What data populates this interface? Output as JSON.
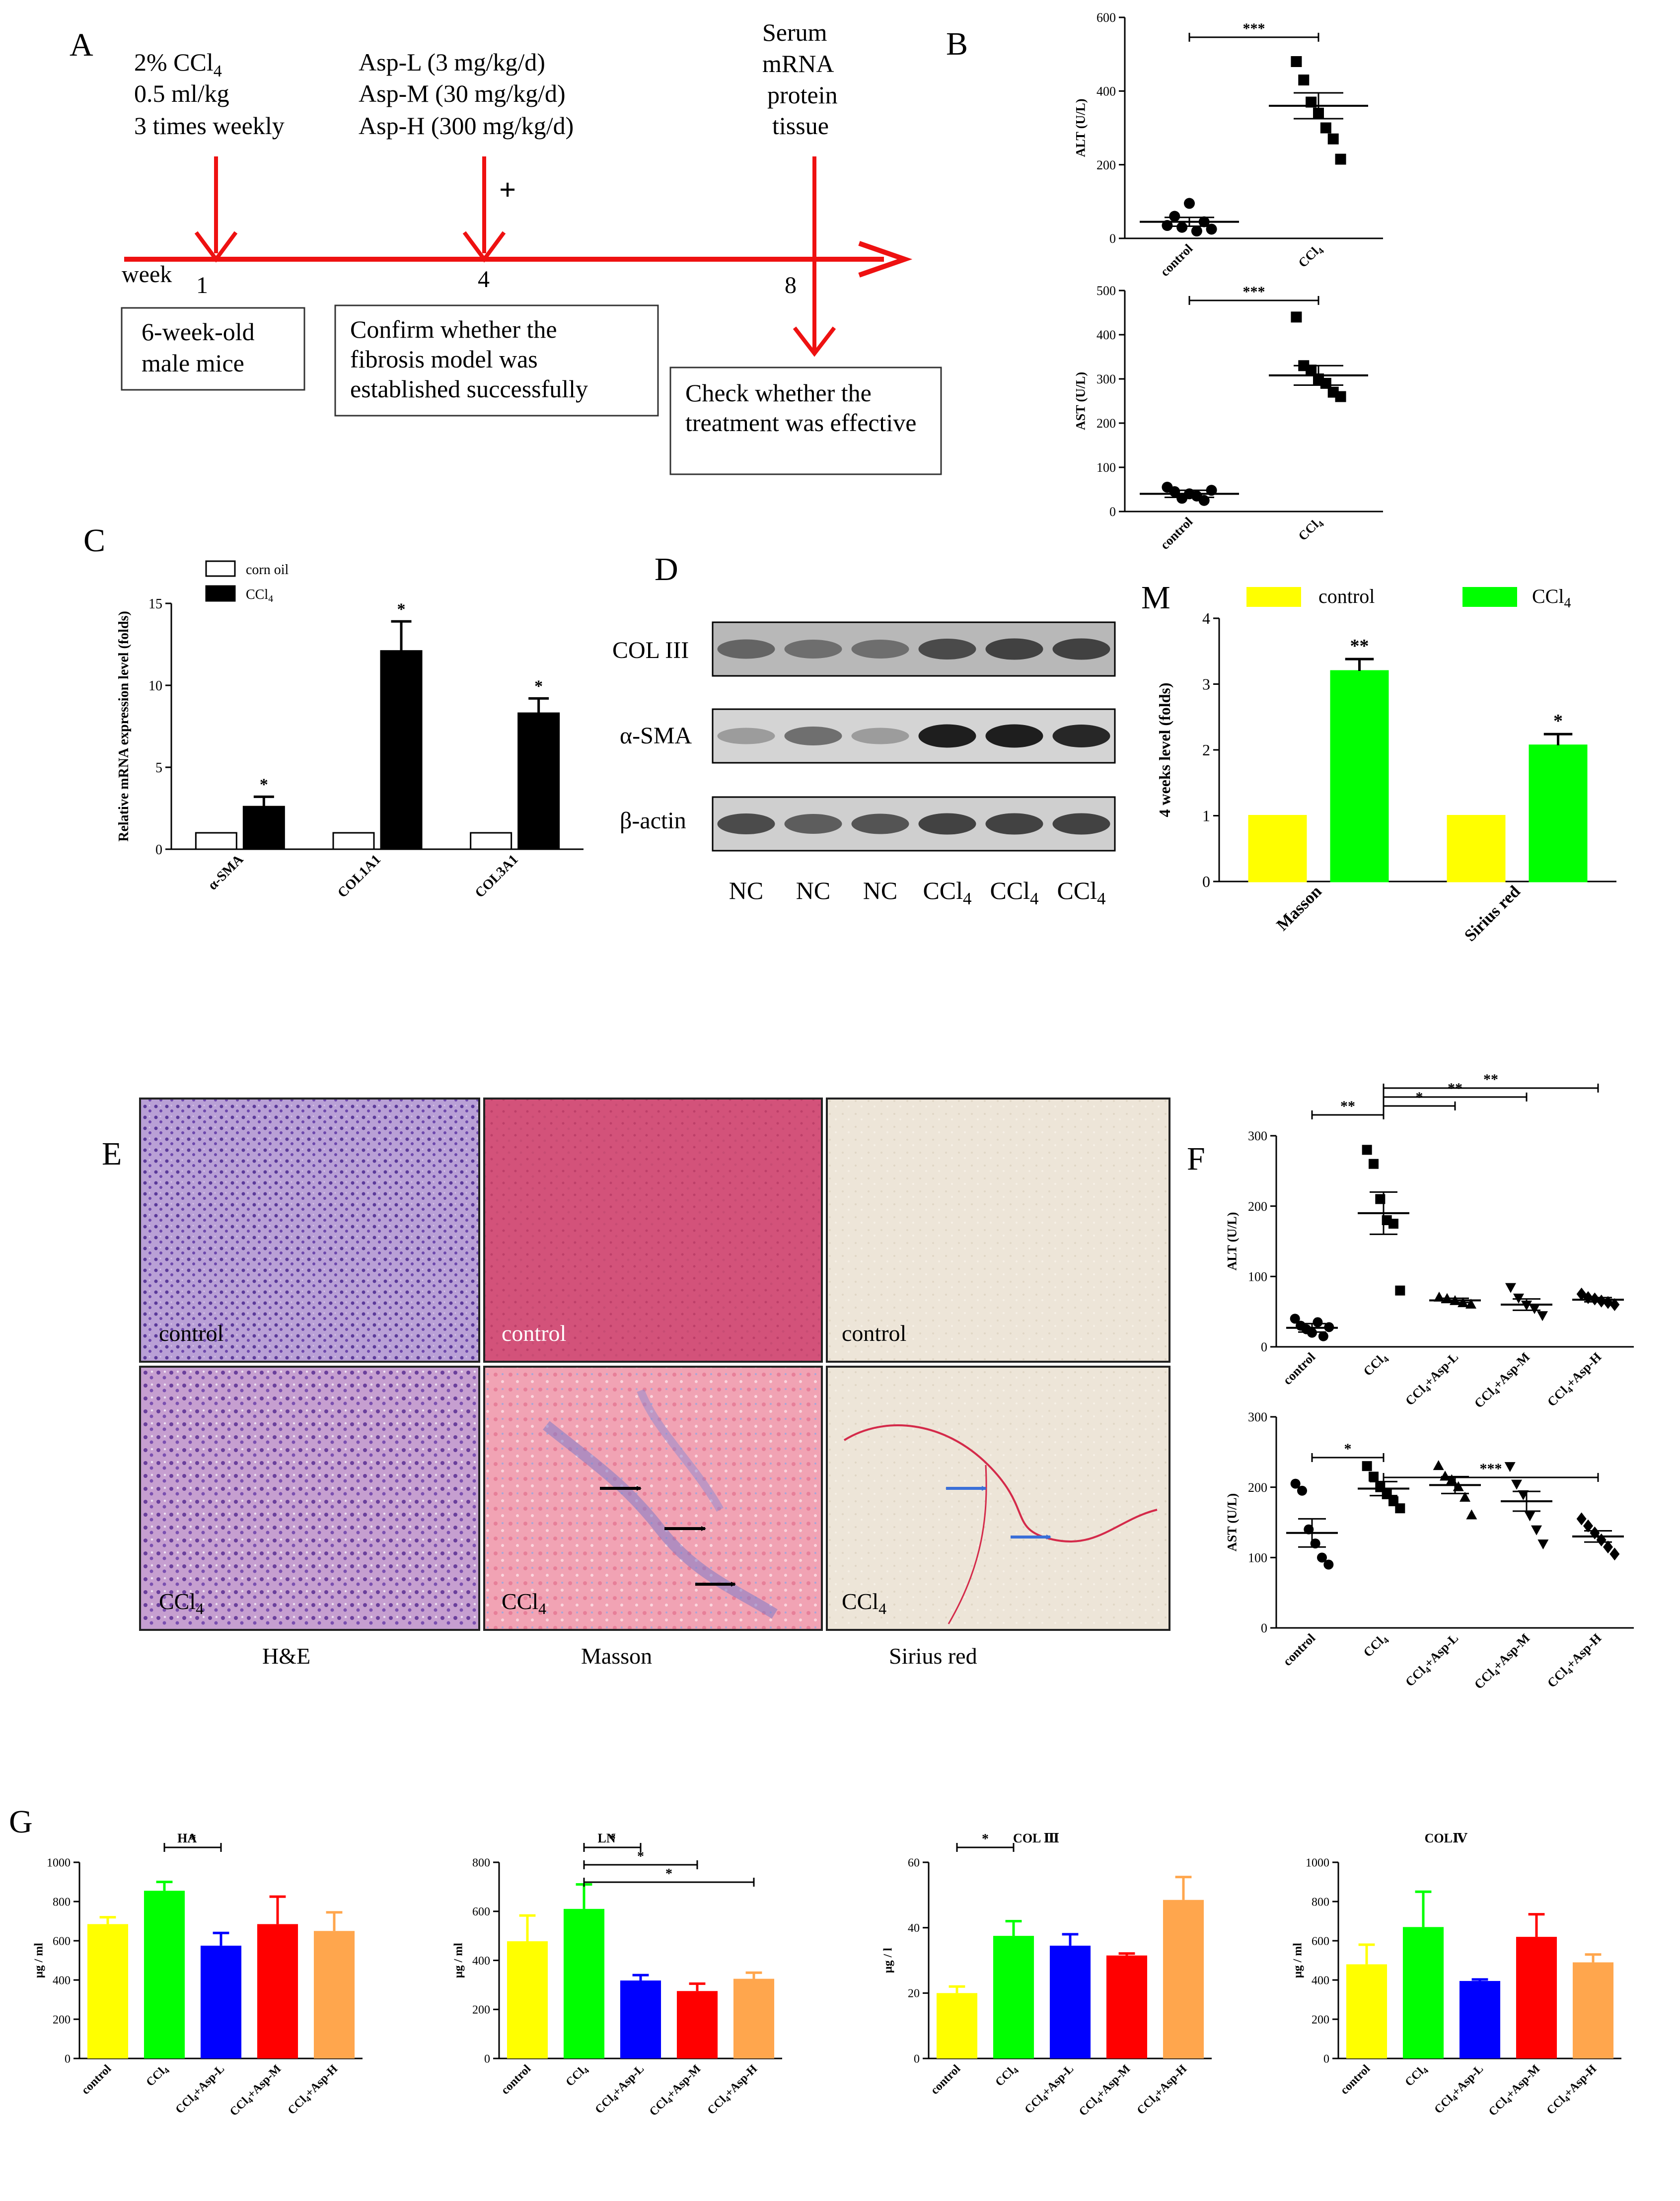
{
  "panel_letters": [
    "A",
    "B",
    "C",
    "D",
    "M",
    "E",
    "F",
    "G"
  ],
  "panelA": {
    "ccl4_lines": [
      "2% CCl",
      "0.5 ml/kg",
      "3 times weekly"
    ],
    "asp_lines": [
      "Asp-L (3 mg/kg/d)",
      "Asp-M (30 mg/kg/d)",
      "Asp-H (300 mg/kg/d)"
    ],
    "serum_lines": [
      "Serum",
      "mRNA",
      "protein",
      "tissue"
    ],
    "plus": "+",
    "week_label": "week",
    "week_nums": [
      "1",
      "4",
      "8"
    ],
    "box1": [
      "6-week-old",
      "male mice"
    ],
    "box2": [
      "Confirm whether the",
      "fibrosis model was",
      "established successfully"
    ],
    "box3": [
      "Check whether the",
      "treatment was effective"
    ]
  },
  "panelE": {
    "row1_labels": [
      "control",
      "control",
      "control"
    ],
    "row2_labels": [
      "CCl4",
      "CCl4",
      "CCl4"
    ],
    "col_labels": [
      "H&E",
      "Masson",
      "Sirius red"
    ]
  },
  "panelD": {
    "rows": [
      "COL III",
      "α-SMA",
      "β-actin"
    ],
    "lanes": [
      "NC",
      "NC",
      "NC",
      "CCl4",
      "CCl4",
      "CCl4"
    ],
    "colIII": [
      0.55,
      0.5,
      0.5,
      0.7,
      0.75,
      0.75
    ],
    "aSMA": [
      0.25,
      0.5,
      0.25,
      0.95,
      0.95,
      0.9
    ],
    "bactin": [
      0.7,
      0.6,
      0.65,
      0.75,
      0.75,
      0.75
    ]
  },
  "colors": {
    "red": "#ee1111",
    "yellow": "#ffff00",
    "green": "#00ff00",
    "blue": "#0000ff",
    "red_bar": "#ff0000",
    "orange": "#ffa64d",
    "black": "#000000"
  },
  "chart_data": [
    {
      "id": "B-ALT",
      "type": "scatter",
      "ylabel": "ALT (U/L)",
      "ylim": [
        0,
        600
      ],
      "yticks": [
        0,
        200,
        400,
        600
      ],
      "categories": [
        "control",
        "CCl4"
      ],
      "points": [
        [
          35,
          60,
          30,
          95,
          20,
          45,
          25
        ],
        [
          480,
          430,
          370,
          340,
          300,
          270,
          215
        ]
      ],
      "means": [
        45,
        360
      ],
      "sems": [
        12,
        35
      ],
      "sig": [
        {
          "from": 0,
          "to": 1,
          "label": "***"
        }
      ]
    },
    {
      "id": "B-AST",
      "type": "scatter",
      "ylabel": "AST (U/L)",
      "ylim": [
        0,
        500
      ],
      "yticks": [
        0,
        100,
        200,
        300,
        400,
        500
      ],
      "categories": [
        "control",
        "CCl4"
      ],
      "points": [
        [
          55,
          45,
          30,
          40,
          35,
          25,
          48
        ],
        [
          440,
          330,
          320,
          300,
          290,
          270,
          260
        ]
      ],
      "means": [
        40,
        308
      ],
      "sems": [
        8,
        22
      ],
      "sig": [
        {
          "from": 0,
          "to": 1,
          "label": "***"
        }
      ]
    },
    {
      "id": "C",
      "type": "bar",
      "ylabel": "Relative mRNA expression level (folds)",
      "ylim": [
        0,
        15
      ],
      "yticks": [
        0,
        5,
        10,
        15
      ],
      "categories": [
        "α-SMA",
        "COL1A1",
        "COL3A1"
      ],
      "series": [
        {
          "name": "corn oil",
          "values": [
            1,
            1,
            1
          ],
          "errors": [
            0,
            0,
            0
          ]
        },
        {
          "name": "CCl4",
          "values": [
            2.6,
            12.1,
            8.3
          ],
          "errors": [
            0.6,
            1.8,
            0.9
          ]
        }
      ],
      "stars": [
        "*",
        "*",
        "*"
      ]
    },
    {
      "id": "M",
      "type": "bar",
      "ylabel": "4 weeks level (folds)",
      "ylim": [
        0,
        4
      ],
      "yticks": [
        0,
        1,
        2,
        3,
        4
      ],
      "categories": [
        "Masson",
        "Sirius red"
      ],
      "series": [
        {
          "name": "control",
          "values": [
            1,
            1
          ],
          "errors": [
            0,
            0
          ]
        },
        {
          "name": "CCl4",
          "values": [
            3.2,
            2.07
          ],
          "errors": [
            0.18,
            0.17
          ]
        }
      ],
      "stars": [
        "**",
        "*"
      ]
    },
    {
      "id": "F-ALT",
      "type": "scatter",
      "ylabel": "ALT (U/L)",
      "ylim": [
        0,
        300
      ],
      "yticks": [
        0,
        100,
        200,
        300
      ],
      "categories": [
        "control",
        "CCl4",
        "CCl4+Asp-L",
        "CCl4+Asp-M",
        "CCl4+Asp-H"
      ],
      "points": [
        [
          40,
          30,
          25,
          20,
          35,
          15,
          28
        ],
        [
          280,
          260,
          210,
          180,
          175,
          80
        ],
        [
          70,
          68,
          65,
          62,
          60
        ],
        [
          85,
          70,
          60,
          55,
          45
        ],
        [
          75,
          70,
          68,
          65,
          63,
          60
        ]
      ],
      "means": [
        27,
        190,
        66,
        60,
        67
      ],
      "sems": [
        6,
        30,
        3,
        8,
        3
      ],
      "sig": [
        {
          "from": 0,
          "to": 1,
          "label": "**"
        },
        {
          "from": 1,
          "to": 2,
          "label": "*"
        },
        {
          "from": 1,
          "to": 3,
          "label": "**"
        },
        {
          "from": 1,
          "to": 4,
          "label": "**"
        }
      ]
    },
    {
      "id": "F-AST",
      "type": "scatter",
      "ylabel": "AST (U/L)",
      "ylim": [
        0,
        300
      ],
      "yticks": [
        0,
        100,
        200,
        300
      ],
      "categories": [
        "control",
        "CCl4",
        "CCl4+Asp-L",
        "CCl4+Asp-M",
        "CCl4+Asp-H"
      ],
      "points": [
        [
          205,
          195,
          140,
          120,
          100,
          90
        ],
        [
          230,
          215,
          200,
          190,
          180,
          170
        ],
        [
          230,
          215,
          210,
          200,
          185,
          160
        ],
        [
          230,
          205,
          190,
          160,
          140,
          120
        ],
        [
          155,
          145,
          135,
          125,
          115,
          105
        ]
      ],
      "means": [
        135,
        198,
        203,
        180,
        130
      ],
      "sems": [
        20,
        10,
        12,
        14,
        8
      ],
      "sig": [
        {
          "from": 0,
          "to": 1,
          "label": "*"
        },
        {
          "from": 1,
          "to": 4,
          "label": "***"
        }
      ]
    },
    {
      "id": "G-HA",
      "type": "bar",
      "title": "HA",
      "ylabel": "μg / ml",
      "ylim": [
        0,
        1000
      ],
      "yticks": [
        0,
        200,
        400,
        600,
        800,
        1000
      ],
      "categories": [
        "control",
        "CCl4",
        "CCl4+Asp-L",
        "CCl4+Asp-M",
        "CCl4+Asp-H"
      ],
      "values": [
        685,
        855,
        575,
        685,
        650
      ],
      "errors": [
        35,
        45,
        65,
        140,
        95
      ],
      "sig": [
        {
          "from": 1,
          "to": 2,
          "label": "*"
        }
      ]
    },
    {
      "id": "G-LN",
      "type": "bar",
      "title": "LN",
      "ylabel": "μg / ml",
      "ylim": [
        0,
        800
      ],
      "yticks": [
        0,
        200,
        400,
        600,
        800
      ],
      "categories": [
        "control",
        "CCl4",
        "CCl4+Asp-L",
        "CCl4+Asp-M",
        "CCl4+Asp-H"
      ],
      "values": [
        478,
        610,
        318,
        275,
        325
      ],
      "errors": [
        105,
        100,
        22,
        30,
        25
      ],
      "sig": [
        {
          "from": 1,
          "to": 2,
          "label": "*"
        },
        {
          "from": 1,
          "to": 3,
          "label": "*"
        },
        {
          "from": 1,
          "to": 4,
          "label": "*"
        }
      ]
    },
    {
      "id": "G-COL3",
      "type": "bar",
      "title": "COL Ⅲ",
      "ylabel": "μg / l",
      "ylim": [
        0,
        60
      ],
      "yticks": [
        0,
        20,
        40,
        60
      ],
      "categories": [
        "control",
        "CCl4",
        "CCl4+Asp-L",
        "CCl4+Asp-M",
        "CCl4+Asp-H"
      ],
      "values": [
        20,
        37.5,
        34.5,
        31.5,
        48.5
      ],
      "errors": [
        2,
        4.5,
        3.5,
        0.6,
        7
      ],
      "sig": [
        {
          "from": 0,
          "to": 1,
          "label": "*"
        }
      ]
    },
    {
      "id": "G-COL4",
      "type": "bar",
      "title": "COLⅣ",
      "ylabel": "μg / ml",
      "ylim": [
        0,
        1000
      ],
      "yticks": [
        0,
        200,
        400,
        600,
        800,
        1000
      ],
      "categories": [
        "control",
        "CCl4",
        "CCl4+Asp-L",
        "CCl4+Asp-M",
        "CCl4+Asp-H"
      ],
      "values": [
        480,
        670,
        395,
        620,
        490
      ],
      "errors": [
        100,
        180,
        8,
        115,
        40
      ],
      "sig": []
    }
  ]
}
